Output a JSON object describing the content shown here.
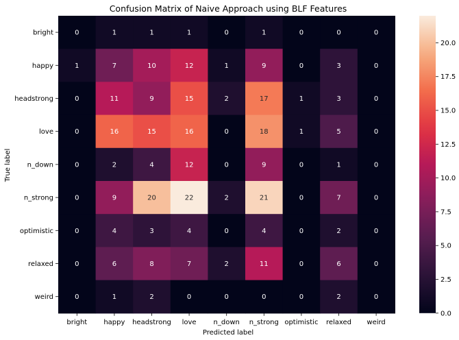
{
  "chart_data": {
    "type": "heatmap",
    "title": "Confusion Matrix of Naive Approach using BLF Features",
    "xlabel": "Predicted label",
    "ylabel": "True label",
    "x_categories": [
      "bright",
      "happy",
      "headstrong",
      "love",
      "n_down",
      "n_strong",
      "optimistic",
      "relaxed",
      "weird"
    ],
    "y_categories": [
      "bright",
      "happy",
      "headstrong",
      "love",
      "n_down",
      "n_strong",
      "optimistic",
      "relaxed",
      "weird"
    ],
    "values": [
      [
        0,
        1,
        1,
        1,
        0,
        1,
        0,
        0,
        0
      ],
      [
        1,
        7,
        10,
        12,
        1,
        9,
        0,
        3,
        0
      ],
      [
        0,
        11,
        9,
        15,
        2,
        17,
        1,
        3,
        0
      ],
      [
        0,
        16,
        15,
        16,
        0,
        18,
        1,
        5,
        0
      ],
      [
        0,
        2,
        4,
        12,
        0,
        9,
        0,
        1,
        0
      ],
      [
        0,
        9,
        20,
        22,
        2,
        21,
        0,
        7,
        0
      ],
      [
        0,
        4,
        3,
        4,
        0,
        4,
        0,
        2,
        0
      ],
      [
        0,
        6,
        8,
        7,
        2,
        11,
        0,
        6,
        0
      ],
      [
        0,
        1,
        2,
        0,
        0,
        0,
        0,
        2,
        0
      ]
    ],
    "colorbar": {
      "vmin": 0,
      "vmax": 22,
      "ticks": [
        "0.0",
        "2.5",
        "5.0",
        "7.5",
        "10.0",
        "12.5",
        "15.0",
        "17.5",
        "20.0"
      ],
      "colormap": "rocket"
    }
  }
}
